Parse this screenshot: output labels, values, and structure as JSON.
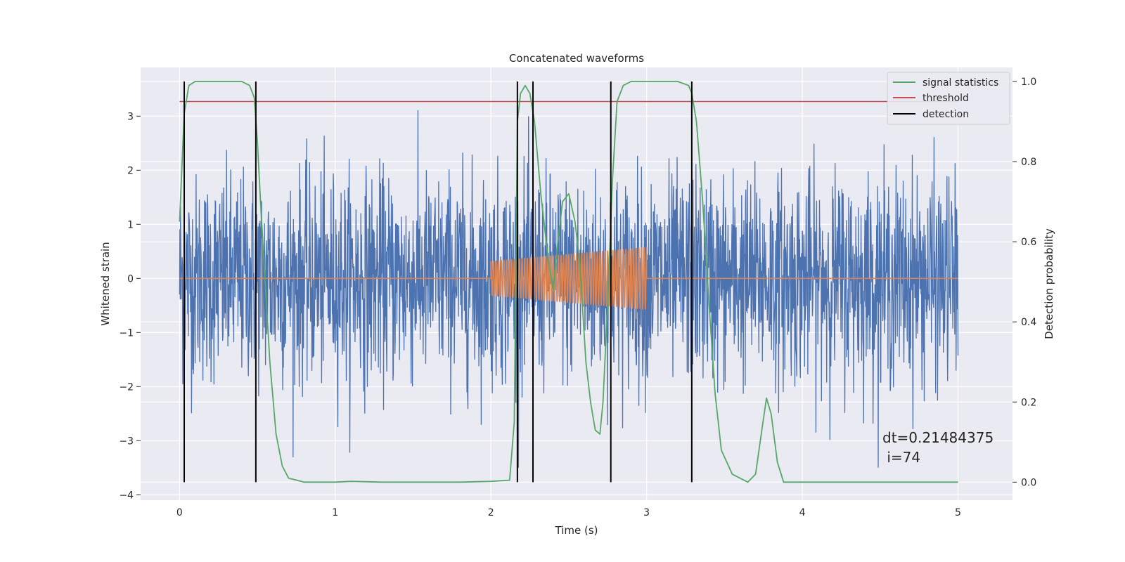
{
  "chart_data": {
    "type": "line",
    "title": "Concatenated waveforms",
    "xlabel": "Time (s)",
    "ylabel": "Whitened strain",
    "y2label": "Detection probability",
    "xlim": [
      -0.25,
      5.35
    ],
    "ylim": [
      -4.1,
      3.9
    ],
    "y2lim": [
      -0.045,
      1.035
    ],
    "x_ticks": [
      "0",
      "1",
      "2",
      "3",
      "4",
      "5"
    ],
    "y_ticks": [
      "−4",
      "−3",
      "−2",
      "−1",
      "0",
      "1",
      "2",
      "3"
    ],
    "y2_ticks": [
      "0.0",
      "0.2",
      "0.4",
      "0.6",
      "0.8",
      "1.0"
    ],
    "grid": true,
    "legend_position": "top-right",
    "colors": {
      "background": "#eaeaf2",
      "strain": "#4c72b0",
      "template": "#dd8452",
      "signal_statistics": "#55a868",
      "threshold": "#c44e52",
      "detection": "#000000"
    },
    "series": [
      {
        "name": "signal statistics",
        "axis": "right",
        "x": [
          0.0,
          0.03,
          0.06,
          0.1,
          0.15,
          0.25,
          0.4,
          0.45,
          0.48,
          0.5,
          0.52,
          0.55,
          0.58,
          0.62,
          0.66,
          0.7,
          0.8,
          1.0,
          1.1,
          1.3,
          1.6,
          1.8,
          2.0,
          2.12,
          2.15,
          2.17,
          2.19,
          2.22,
          2.25,
          2.28,
          2.32,
          2.37,
          2.4,
          2.43,
          2.46,
          2.5,
          2.54,
          2.57,
          2.61,
          2.64,
          2.67,
          2.7,
          2.72,
          2.75,
          2.78,
          2.81,
          2.85,
          2.9,
          3.0,
          3.2,
          3.27,
          3.29,
          3.32,
          3.36,
          3.4,
          3.44,
          3.48,
          3.55,
          3.65,
          3.7,
          3.74,
          3.77,
          3.8,
          3.84,
          3.88,
          4.0,
          4.5,
          5.0
        ],
        "y": [
          0.65,
          0.92,
          0.99,
          1.0,
          1.0,
          1.0,
          1.0,
          0.99,
          0.96,
          0.85,
          0.7,
          0.5,
          0.3,
          0.12,
          0.04,
          0.01,
          0.0,
          0.0,
          0.002,
          0.0,
          0.0,
          0.0,
          0.002,
          0.005,
          0.15,
          0.9,
          0.97,
          0.99,
          0.97,
          0.9,
          0.72,
          0.55,
          0.48,
          0.6,
          0.7,
          0.72,
          0.65,
          0.55,
          0.3,
          0.2,
          0.13,
          0.12,
          0.2,
          0.45,
          0.75,
          0.95,
          0.99,
          1.0,
          1.0,
          1.0,
          0.99,
          0.97,
          0.9,
          0.7,
          0.45,
          0.22,
          0.08,
          0.02,
          0.0,
          0.02,
          0.13,
          0.21,
          0.17,
          0.05,
          0.0,
          0.0,
          0.0,
          0.0
        ]
      },
      {
        "name": "threshold",
        "axis": "right",
        "x": [
          0.0,
          5.0
        ],
        "y": [
          0.95,
          0.95
        ]
      },
      {
        "name": "detection",
        "axis": "right",
        "x": [
          0.03,
          0.49,
          2.17,
          2.27,
          2.77,
          3.29
        ],
        "y_range": [
          0.0,
          1.0
        ]
      }
    ],
    "strain_envelope": {
      "x_range": [
        0.0,
        5.0
      ],
      "max_abs": 3.5
    },
    "template": {
      "x_range": [
        2.0,
        3.0
      ],
      "start_amplitude": 0.32,
      "end_amplitude": 0.58,
      "cycles": 60
    },
    "annotation": [
      "dt=0.21484375",
      " i=74"
    ]
  }
}
